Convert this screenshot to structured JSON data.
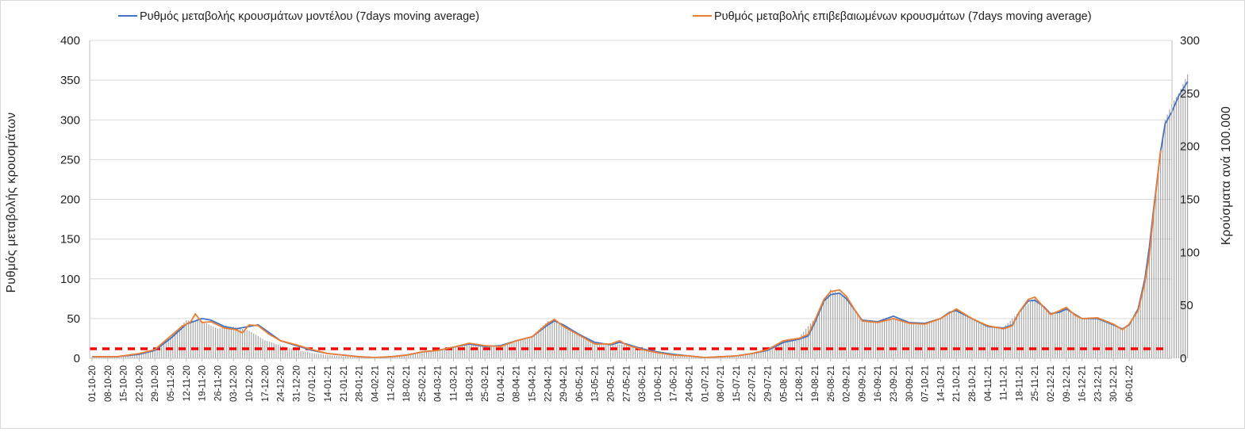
{
  "chart_data": {
    "type": "line",
    "title": "",
    "ylabel": "Ρυθμός μεταβολής κρουσμάτων",
    "y2label": "Κρούσματα ανά 100.000",
    "ylim": [
      0,
      400
    ],
    "yticks": [
      0,
      50,
      100,
      150,
      200,
      250,
      300,
      350,
      400
    ],
    "y2lim": [
      0,
      300
    ],
    "y2ticks": [
      0,
      50,
      100,
      150,
      200,
      250,
      300
    ],
    "x_start": "2020-10-01",
    "x_end": "2022-01-12",
    "x_tick_labels": [
      "01-10-20",
      "08-10-20",
      "15-10-20",
      "22-10-20",
      "29-10-20",
      "05-11-20",
      "12-11-20",
      "19-11-20",
      "26-11-20",
      "03-12-20",
      "10-12-20",
      "17-12-20",
      "24-12-20",
      "31-12-20",
      "07-01-21",
      "14-01-21",
      "21-01-21",
      "28-01-21",
      "04-02-21",
      "11-02-21",
      "18-02-21",
      "25-02-21",
      "04-03-21",
      "11-03-21",
      "18-03-21",
      "25-03-21",
      "01-04-21",
      "08-04-21",
      "15-04-21",
      "22-04-21",
      "29-04-21",
      "06-05-21",
      "13-05-21",
      "20-05-21",
      "27-05-21",
      "03-06-21",
      "10-06-21",
      "17-06-21",
      "24-06-21",
      "01-07-21",
      "08-07-21",
      "15-07-21",
      "22-07-21",
      "29-07-21",
      "05-08-21",
      "12-08-21",
      "19-08-21",
      "26-08-21",
      "02-09-21",
      "09-09-21",
      "16-09-21",
      "23-09-21",
      "30-09-21",
      "07-10-21",
      "14-10-21",
      "21-10-21",
      "28-10-21",
      "04-11-21",
      "11-11-21",
      "18-11-21",
      "25-11-21",
      "02-12-21",
      "09-12-21",
      "16-12-21",
      "23-12-21",
      "30-12-21",
      "06-01-22"
    ],
    "grid": true,
    "legend_position": "top",
    "series": [
      {
        "name": "Ρυθμός μεταβολής κρουσμάτων μοντέλου (7days moving average)",
        "type": "line",
        "axis": "left",
        "color": "#4472C4",
        "points": [
          [
            "2020-10-01",
            2
          ],
          [
            "2020-10-12",
            2
          ],
          [
            "2020-10-22",
            5
          ],
          [
            "2020-10-29",
            10
          ],
          [
            "2020-11-05",
            25
          ],
          [
            "2020-11-12",
            43
          ],
          [
            "2020-11-19",
            50
          ],
          [
            "2020-11-23",
            48
          ],
          [
            "2020-11-29",
            40
          ],
          [
            "2020-12-04",
            37
          ],
          [
            "2020-12-10",
            40
          ],
          [
            "2020-12-14",
            42
          ],
          [
            "2020-12-19",
            32
          ],
          [
            "2020-12-24",
            22
          ],
          [
            "2020-12-31",
            16
          ],
          [
            "2021-01-07",
            10
          ],
          [
            "2021-01-14",
            6
          ],
          [
            "2021-01-21",
            4
          ],
          [
            "2021-01-28",
            2
          ],
          [
            "2021-02-04",
            1
          ],
          [
            "2021-02-11",
            2
          ],
          [
            "2021-02-18",
            4
          ],
          [
            "2021-02-25",
            8
          ],
          [
            "2021-03-04",
            10
          ],
          [
            "2021-03-11",
            14
          ],
          [
            "2021-03-18",
            18
          ],
          [
            "2021-03-25",
            15
          ],
          [
            "2021-04-01",
            16
          ],
          [
            "2021-04-08",
            22
          ],
          [
            "2021-04-15",
            27
          ],
          [
            "2021-04-22",
            42
          ],
          [
            "2021-04-25",
            47
          ],
          [
            "2021-04-29",
            42
          ],
          [
            "2021-05-06",
            30
          ],
          [
            "2021-05-13",
            20
          ],
          [
            "2021-05-20",
            17
          ],
          [
            "2021-05-24",
            20
          ],
          [
            "2021-05-27",
            18
          ],
          [
            "2021-06-03",
            12
          ],
          [
            "2021-06-10",
            8
          ],
          [
            "2021-06-17",
            5
          ],
          [
            "2021-06-24",
            3
          ],
          [
            "2021-07-01",
            1
          ],
          [
            "2021-07-08",
            2
          ],
          [
            "2021-07-15",
            3
          ],
          [
            "2021-07-22",
            6
          ],
          [
            "2021-07-29",
            10
          ],
          [
            "2021-08-05",
            20
          ],
          [
            "2021-08-12",
            24
          ],
          [
            "2021-08-16",
            28
          ],
          [
            "2021-08-19",
            45
          ],
          [
            "2021-08-23",
            72
          ],
          [
            "2021-08-26",
            80
          ],
          [
            "2021-08-30",
            82
          ],
          [
            "2021-09-02",
            75
          ],
          [
            "2021-09-06",
            60
          ],
          [
            "2021-09-09",
            48
          ],
          [
            "2021-09-16",
            46
          ],
          [
            "2021-09-23",
            53
          ],
          [
            "2021-09-30",
            45
          ],
          [
            "2021-10-07",
            44
          ],
          [
            "2021-10-14",
            50
          ],
          [
            "2021-10-18",
            58
          ],
          [
            "2021-10-21",
            60
          ],
          [
            "2021-10-28",
            50
          ],
          [
            "2021-11-04",
            40
          ],
          [
            "2021-11-11",
            38
          ],
          [
            "2021-11-15",
            42
          ],
          [
            "2021-11-18",
            58
          ],
          [
            "2021-11-22",
            72
          ],
          [
            "2021-11-25",
            73
          ],
          [
            "2021-11-29",
            65
          ],
          [
            "2021-12-02",
            56
          ],
          [
            "2021-12-06",
            58
          ],
          [
            "2021-12-09",
            62
          ],
          [
            "2021-12-13",
            55
          ],
          [
            "2021-12-16",
            50
          ],
          [
            "2021-12-23",
            50
          ],
          [
            "2021-12-30",
            42
          ],
          [
            "2022-01-03",
            37
          ],
          [
            "2022-01-06",
            42
          ],
          [
            "2022-01-10",
            62
          ],
          [
            "2022-01-13",
            100
          ],
          [
            "2022-01-15",
            140
          ],
          [
            "2022-01-17",
            190
          ],
          [
            "2022-01-20",
            260
          ],
          [
            "2022-01-22",
            295
          ],
          [
            "2022-01-25",
            310
          ],
          [
            "2022-01-28",
            330
          ],
          [
            "2022-02-01",
            348
          ]
        ]
      },
      {
        "name": "Ρυθμός μεταβολής επιβεβαιωμένων κρουσμάτων (7days moving average)",
        "type": "line",
        "axis": "left",
        "color": "#ED7D31",
        "points": [
          [
            "2020-10-01",
            2
          ],
          [
            "2020-10-12",
            2
          ],
          [
            "2020-10-22",
            6
          ],
          [
            "2020-10-29",
            11
          ],
          [
            "2020-11-05",
            28
          ],
          [
            "2020-11-10",
            40
          ],
          [
            "2020-11-14",
            46
          ],
          [
            "2020-11-16",
            56
          ],
          [
            "2020-11-19",
            45
          ],
          [
            "2020-11-23",
            46
          ],
          [
            "2020-11-29",
            38
          ],
          [
            "2020-12-04",
            36
          ],
          [
            "2020-12-07",
            32
          ],
          [
            "2020-12-10",
            42
          ],
          [
            "2020-12-14",
            41
          ],
          [
            "2020-12-19",
            30
          ],
          [
            "2020-12-24",
            22
          ],
          [
            "2020-12-31",
            17
          ],
          [
            "2021-01-07",
            11
          ],
          [
            "2021-01-14",
            6
          ],
          [
            "2021-01-21",
            4
          ],
          [
            "2021-01-28",
            2
          ],
          [
            "2021-02-04",
            1
          ],
          [
            "2021-02-11",
            2
          ],
          [
            "2021-02-18",
            4
          ],
          [
            "2021-02-25",
            8
          ],
          [
            "2021-03-04",
            10
          ],
          [
            "2021-03-11",
            14
          ],
          [
            "2021-03-18",
            19
          ],
          [
            "2021-03-25",
            16
          ],
          [
            "2021-04-01",
            15
          ],
          [
            "2021-04-08",
            22
          ],
          [
            "2021-04-15",
            27
          ],
          [
            "2021-04-22",
            44
          ],
          [
            "2021-04-25",
            49
          ],
          [
            "2021-04-29",
            40
          ],
          [
            "2021-05-06",
            29
          ],
          [
            "2021-05-13",
            18
          ],
          [
            "2021-05-20",
            18
          ],
          [
            "2021-05-24",
            22
          ],
          [
            "2021-05-27",
            17
          ],
          [
            "2021-06-03",
            11
          ],
          [
            "2021-06-10",
            7
          ],
          [
            "2021-06-17",
            4
          ],
          [
            "2021-06-24",
            3
          ],
          [
            "2021-07-01",
            1
          ],
          [
            "2021-07-08",
            2
          ],
          [
            "2021-07-15",
            3
          ],
          [
            "2021-07-22",
            6
          ],
          [
            "2021-07-29",
            11
          ],
          [
            "2021-08-05",
            22
          ],
          [
            "2021-08-12",
            25
          ],
          [
            "2021-08-16",
            30
          ],
          [
            "2021-08-19",
            48
          ],
          [
            "2021-08-23",
            74
          ],
          [
            "2021-08-26",
            84
          ],
          [
            "2021-08-30",
            86
          ],
          [
            "2021-09-02",
            78
          ],
          [
            "2021-09-06",
            60
          ],
          [
            "2021-09-09",
            47
          ],
          [
            "2021-09-16",
            45
          ],
          [
            "2021-09-23",
            50
          ],
          [
            "2021-09-30",
            44
          ],
          [
            "2021-10-07",
            43
          ],
          [
            "2021-10-14",
            50
          ],
          [
            "2021-10-18",
            57
          ],
          [
            "2021-10-21",
            62
          ],
          [
            "2021-10-28",
            50
          ],
          [
            "2021-11-04",
            41
          ],
          [
            "2021-11-11",
            37
          ],
          [
            "2021-11-15",
            41
          ],
          [
            "2021-11-18",
            58
          ],
          [
            "2021-11-22",
            74
          ],
          [
            "2021-11-25",
            77
          ],
          [
            "2021-11-29",
            64
          ],
          [
            "2021-12-02",
            55
          ],
          [
            "2021-12-06",
            60
          ],
          [
            "2021-12-09",
            64
          ],
          [
            "2021-12-13",
            54
          ],
          [
            "2021-12-16",
            50
          ],
          [
            "2021-12-23",
            51
          ],
          [
            "2021-12-30",
            43
          ],
          [
            "2022-01-03",
            36
          ],
          [
            "2022-01-06",
            43
          ],
          [
            "2022-01-10",
            60
          ],
          [
            "2022-01-13",
            95
          ],
          [
            "2022-01-15",
            130
          ],
          [
            "2022-01-17",
            185
          ],
          [
            "2022-01-20",
            262
          ]
        ]
      },
      {
        "name": "Κρούσματα ανά 100.000",
        "type": "bar",
        "axis": "right",
        "color": "#A6A6A6",
        "points": [
          [
            "2020-10-01",
            1
          ],
          [
            "2020-10-15",
            2
          ],
          [
            "2020-10-22",
            4
          ],
          [
            "2020-10-29",
            8
          ],
          [
            "2020-11-05",
            20
          ],
          [
            "2020-11-12",
            36
          ],
          [
            "2020-11-19",
            35
          ],
          [
            "2020-11-26",
            28
          ],
          [
            "2020-12-03",
            30
          ],
          [
            "2020-12-10",
            26
          ],
          [
            "2020-12-17",
            17
          ],
          [
            "2020-12-24",
            12
          ],
          [
            "2020-12-31",
            8
          ],
          [
            "2021-01-07",
            5
          ],
          [
            "2021-01-14",
            3
          ],
          [
            "2021-01-21",
            2
          ],
          [
            "2021-01-28",
            1
          ],
          [
            "2021-02-04",
            1
          ],
          [
            "2021-02-11",
            2
          ],
          [
            "2021-02-18",
            3
          ],
          [
            "2021-02-25",
            6
          ],
          [
            "2021-03-04",
            8
          ],
          [
            "2021-03-11",
            11
          ],
          [
            "2021-03-18",
            14
          ],
          [
            "2021-03-25",
            12
          ],
          [
            "2021-04-01",
            12
          ],
          [
            "2021-04-08",
            17
          ],
          [
            "2021-04-15",
            21
          ],
          [
            "2021-04-22",
            35
          ],
          [
            "2021-04-29",
            32
          ],
          [
            "2021-05-06",
            22
          ],
          [
            "2021-05-13",
            14
          ],
          [
            "2021-05-20",
            13
          ],
          [
            "2021-05-27",
            13
          ],
          [
            "2021-06-03",
            9
          ],
          [
            "2021-06-10",
            6
          ],
          [
            "2021-06-17",
            4
          ],
          [
            "2021-06-24",
            2
          ],
          [
            "2021-07-01",
            1
          ],
          [
            "2021-07-08",
            2
          ],
          [
            "2021-07-15",
            3
          ],
          [
            "2021-07-22",
            5
          ],
          [
            "2021-07-29",
            8
          ],
          [
            "2021-08-05",
            17
          ],
          [
            "2021-08-12",
            20
          ],
          [
            "2021-08-19",
            38
          ],
          [
            "2021-08-26",
            65
          ],
          [
            "2021-09-02",
            58
          ],
          [
            "2021-09-09",
            36
          ],
          [
            "2021-09-16",
            35
          ],
          [
            "2021-09-23",
            38
          ],
          [
            "2021-09-30",
            33
          ],
          [
            "2021-10-07",
            33
          ],
          [
            "2021-10-14",
            38
          ],
          [
            "2021-10-21",
            46
          ],
          [
            "2021-10-28",
            38
          ],
          [
            "2021-11-04",
            31
          ],
          [
            "2021-11-11",
            29
          ],
          [
            "2021-11-18",
            44
          ],
          [
            "2021-11-25",
            57
          ],
          [
            "2021-12-02",
            43
          ],
          [
            "2021-12-09",
            47
          ],
          [
            "2021-12-16",
            38
          ],
          [
            "2021-12-23",
            38
          ],
          [
            "2021-12-30",
            31
          ],
          [
            "2022-01-03",
            28
          ],
          [
            "2022-01-06",
            33
          ],
          [
            "2022-01-10",
            48
          ],
          [
            "2022-01-13",
            75
          ],
          [
            "2022-01-17",
            140
          ],
          [
            "2022-01-20",
            195
          ],
          [
            "2022-01-22",
            225
          ],
          [
            "2022-01-25",
            240
          ],
          [
            "2022-01-28",
            250
          ],
          [
            "2022-02-01",
            268
          ]
        ]
      },
      {
        "name": "",
        "type": "threshold",
        "axis": "left",
        "color": "#FF0000",
        "value": 12
      }
    ]
  }
}
